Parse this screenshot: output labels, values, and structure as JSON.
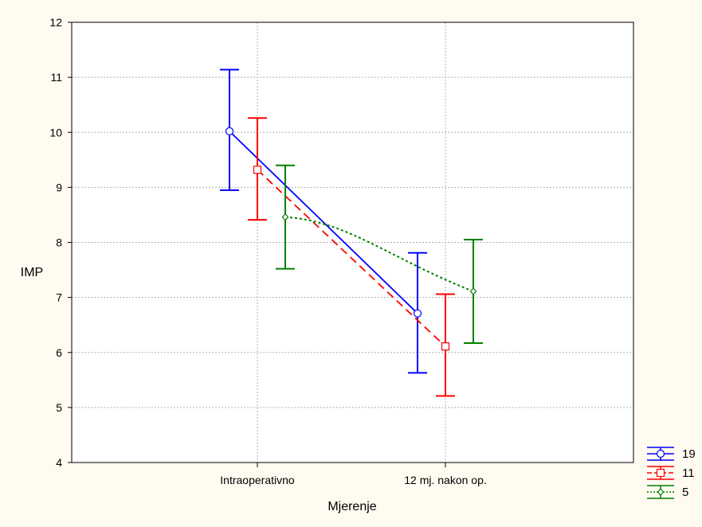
{
  "chart_data": {
    "type": "line",
    "xlabel": "Mjerenje",
    "ylabel": "IMP",
    "ylim": [
      4,
      12
    ],
    "yticks": [
      4,
      5,
      6,
      7,
      8,
      9,
      10,
      11,
      12
    ],
    "categories": [
      "Intraoperativno",
      "12 mj. nakon op."
    ],
    "grid": true,
    "legend_position": "bottom-right",
    "series": [
      {
        "name": "19",
        "color": "#0000ff",
        "marker": "circle",
        "line_style": "solid",
        "values": [
          10.02,
          6.71
        ],
        "upper": [
          11.14,
          7.81
        ],
        "lower": [
          8.95,
          5.63
        ]
      },
      {
        "name": "11",
        "color": "#ff0000",
        "marker": "square",
        "line_style": "dashed",
        "values": [
          9.32,
          6.11
        ],
        "upper": [
          10.26,
          7.06
        ],
        "lower": [
          8.41,
          5.21
        ]
      },
      {
        "name": "5",
        "color": "#008000",
        "marker": "diamond",
        "line_style": "dotted",
        "values": [
          8.46,
          7.11
        ],
        "upper": [
          9.4,
          8.05
        ],
        "lower": [
          7.52,
          6.17
        ]
      }
    ]
  }
}
